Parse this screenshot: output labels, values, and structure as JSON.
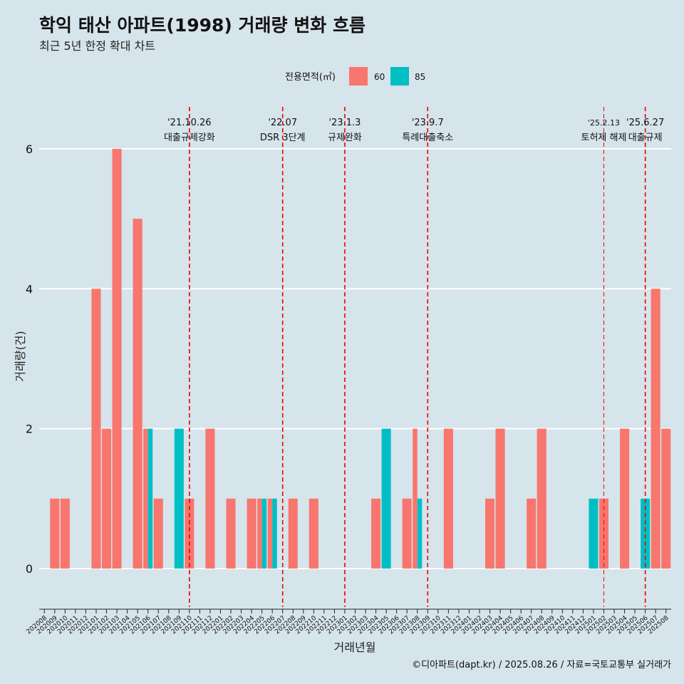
{
  "chart_data": {
    "type": "bar",
    "title": "학익 태산 아파트(1998) 거래량 변화 흐름",
    "subtitle": "최근 5년 한정 확대 차트",
    "xlabel": "거래년월",
    "ylabel": "거래량(건)",
    "ylim": [
      -0.55,
      6.6
    ],
    "yticks": [
      0,
      2,
      4,
      6
    ],
    "grid": true,
    "legend": {
      "title": "전용면적(㎡)",
      "placement": "top"
    },
    "caption": "©디아파트(dapt.kr) / 2025.08.26 / 자료=국토교통부 실거래가",
    "colors": {
      "60": "#f8766d",
      "85": "#00bfc4",
      "background": "#d6e4eb",
      "event_line": "#ee0000"
    },
    "categories": [
      "202008",
      "202009",
      "202010",
      "202011",
      "202012",
      "202101",
      "202102",
      "202103",
      "202104",
      "202105",
      "202106",
      "202107",
      "202108",
      "202109",
      "202110",
      "202111",
      "202112",
      "202201",
      "202202",
      "202203",
      "202204",
      "202205",
      "202206",
      "202207",
      "202208",
      "202209",
      "202210",
      "202211",
      "202212",
      "202301",
      "202302",
      "202303",
      "202304",
      "202305",
      "202306",
      "202307",
      "202308",
      "202309",
      "202310",
      "202311",
      "202312",
      "202401",
      "202402",
      "202403",
      "202404",
      "202405",
      "202406",
      "202407",
      "202408",
      "202409",
      "202410",
      "202411",
      "202412",
      "202501",
      "202502",
      "202503",
      "202504",
      "202505",
      "202506",
      "202507",
      "202508"
    ],
    "series": [
      {
        "name": "60",
        "values": [
          0,
          1,
          1,
          0,
          0,
          4,
          2,
          6,
          0,
          5,
          2,
          1,
          0,
          0,
          1,
          0,
          2,
          0,
          1,
          0,
          1,
          1,
          1,
          0,
          1,
          0,
          1,
          0,
          0,
          0,
          0,
          0,
          1,
          0,
          0,
          1,
          2,
          0,
          0,
          2,
          0,
          0,
          0,
          1,
          2,
          0,
          0,
          1,
          2,
          0,
          0,
          0,
          0,
          0,
          1,
          0,
          2,
          0,
          0,
          4,
          2
        ]
      },
      {
        "name": "85",
        "values": [
          0,
          0,
          0,
          0,
          0,
          0,
          0,
          0,
          0,
          0,
          2,
          0,
          0,
          2,
          0,
          0,
          0,
          0,
          0,
          0,
          0,
          1,
          1,
          0,
          0,
          0,
          0,
          0,
          0,
          0,
          0,
          0,
          0,
          2,
          0,
          0,
          1,
          0,
          0,
          0,
          0,
          0,
          0,
          0,
          0,
          0,
          0,
          0,
          0,
          0,
          0,
          0,
          0,
          1,
          0,
          0,
          0,
          0,
          1,
          0,
          0
        ]
      }
    ],
    "events": [
      {
        "at": "202110",
        "date": "'21.10.26",
        "label": "대출규제강화"
      },
      {
        "at": "202207",
        "date": "'22.07",
        "label": "DSR 3단계"
      },
      {
        "at": "202301",
        "date": "'23.1.3",
        "label": "규제완화"
      },
      {
        "at": "202309",
        "date": "'23.9.7",
        "label": "특례대출축소"
      },
      {
        "at": "202502",
        "date": "'25.2.13",
        "label": "토허제 해제"
      },
      {
        "at": "202506",
        "date": "'25.6.27",
        "label": "대출규제"
      }
    ]
  }
}
